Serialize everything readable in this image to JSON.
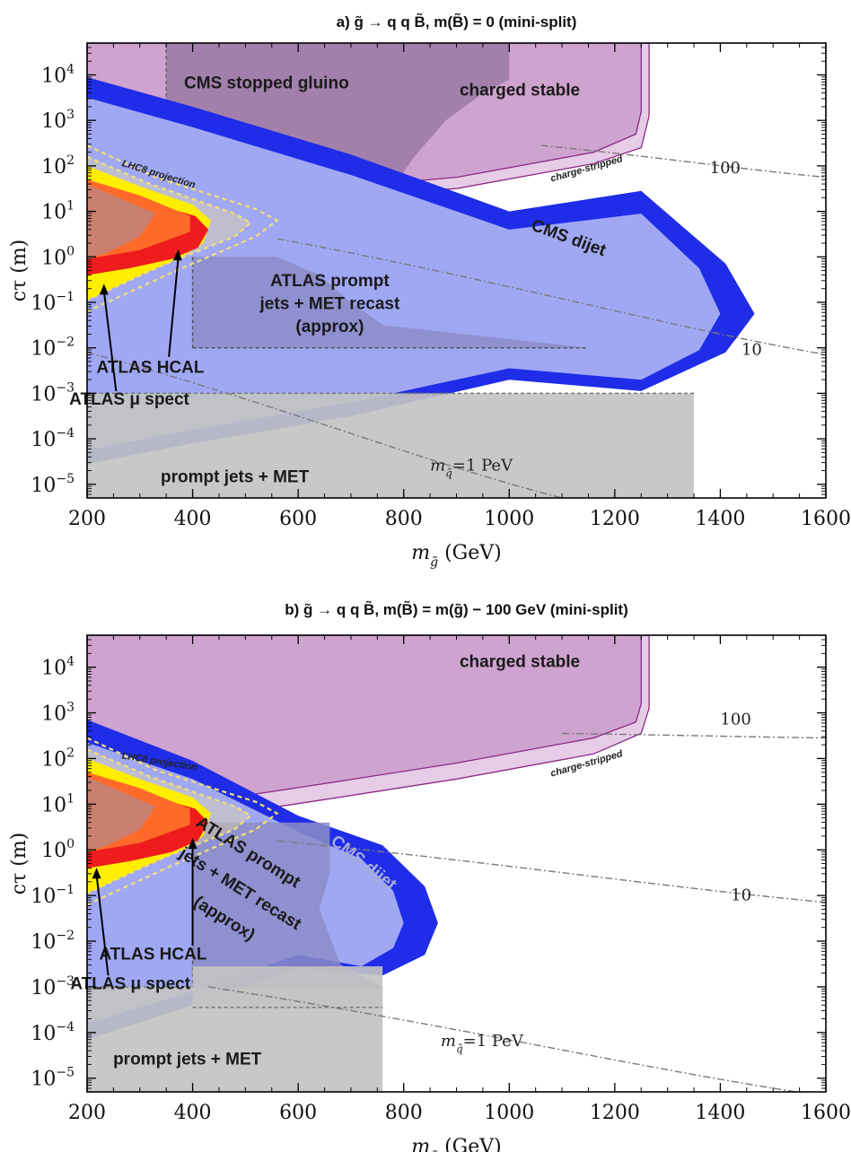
{
  "chart_data": [
    {
      "type": "area",
      "title": "a)  g̃ → q q B̃,  m(B̃) = 0  (mini-split)",
      "xlabel": "m",
      "xlabel_sub": "g̃",
      "xlabel_unit": " (GeV)",
      "ylabel": "cτ (m)",
      "xlim": [
        200,
        1600
      ],
      "ylim_log10": [
        -5.3,
        4.7
      ],
      "scale_y": "log",
      "x_ticks": [
        200,
        400,
        600,
        800,
        1000,
        1200,
        1400,
        1600
      ],
      "y_ticks_exp": [
        -5,
        -4,
        -3,
        -2,
        -1,
        0,
        1,
        2,
        3,
        4
      ],
      "tick_base": "10",
      "regions": [
        {
          "name": "CMS stopped gluino",
          "color": "#9a7aa4"
        },
        {
          "name": "charged stable",
          "color": "#cfa3cf",
          "edge": 1250
        },
        {
          "name": "charge-stripped",
          "color": "#e6cce6",
          "edge": 1265
        },
        {
          "name": "CMS dijet",
          "color": "#1f2de8",
          "outer_tip": [
            1465,
            -1.25
          ],
          "inner_tip": [
            1400,
            -1.25
          ],
          "y_range_log10": [
            -4.55,
            3.95
          ]
        },
        {
          "name": "ATLAS prompt jets + MET recast (approx)",
          "color": "#8c8cc8",
          "x_range": [
            400,
            1150
          ],
          "y_range_log10": [
            -2,
            0
          ]
        },
        {
          "name": "prompt jets + MET",
          "color": "#c3c3c3",
          "x_range": [
            200,
            1350
          ],
          "y_range_log10": [
            -5.3,
            -3
          ]
        },
        {
          "name": "ATLAS HCAL",
          "color": "#ee1c1c"
        },
        {
          "name": "ATLAS μ spect",
          "color": "#ffee00"
        },
        {
          "name": "LHC8 projection",
          "color": "#f4e070"
        }
      ],
      "contours": [
        {
          "label": "100",
          "m_squark": "100 PeV",
          "points": [
            [
              1060,
              2.45
            ],
            [
              1600,
              1.75
            ]
          ]
        },
        {
          "label": "10",
          "m_squark": "10 PeV",
          "points": [
            [
              560,
              0.4
            ],
            [
              1600,
              -2.15
            ]
          ]
        },
        {
          "label": "m",
          "label_sub": "q̃",
          "label_rest": "=1 PeV",
          "m_squark": "1 PeV",
          "points": [
            [
              200,
              -2.1
            ],
            [
              1100,
              -5.3
            ]
          ]
        }
      ],
      "labels": {
        "stopped": "CMS stopped gluino",
        "charged": "charged stable",
        "stripped": "charge-stripped",
        "dijet": "CMS dijet",
        "atlas_line1": "ATLAS prompt",
        "atlas_line2": "jets + MET recast",
        "atlas_line3": "(approx)",
        "prompt": "prompt jets + MET",
        "lhc8": "LHC8 projection",
        "hcal": "ATLAS HCAL",
        "muspect": "ATLAS μ spect"
      }
    },
    {
      "type": "area",
      "title": "b)  g̃ → q q B̃,  m(B̃) = m(g̃) − 100 GeV  (mini-split)",
      "xlabel": "m",
      "xlabel_sub": "g̃",
      "xlabel_unit": " (GeV)",
      "ylabel": "cτ (m)",
      "xlim": [
        200,
        1600
      ],
      "ylim_log10": [
        -5.3,
        4.7
      ],
      "scale_y": "log",
      "x_ticks": [
        200,
        400,
        600,
        800,
        1000,
        1200,
        1400,
        1600
      ],
      "y_ticks_exp": [
        -5,
        -4,
        -3,
        -2,
        -1,
        0,
        1,
        2,
        3,
        4
      ],
      "tick_base": "10",
      "regions": [
        {
          "name": "charged stable",
          "color": "#cfa3cf",
          "edge": 1250
        },
        {
          "name": "charge-stripped",
          "color": "#e6cce6",
          "edge": 1265
        },
        {
          "name": "CMS dijet",
          "color": "#1f2de8",
          "outer_tip": [
            865,
            -1.6
          ],
          "inner_tip": [
            800,
            -1.6
          ],
          "y_range_log10": [
            -4.15,
            2.85
          ]
        },
        {
          "name": "ATLAS prompt jets + MET recast (approx)",
          "color": "#8c8cc8",
          "x_range": [
            400,
            760
          ],
          "y_range_log10": [
            -3,
            0
          ]
        },
        {
          "name": "prompt jets + MET",
          "color": "#c3c3c3",
          "x_range": [
            200,
            760
          ],
          "y_range_log10": [
            -5.3,
            -3
          ]
        },
        {
          "name": "ATLAS HCAL",
          "color": "#ee1c1c"
        },
        {
          "name": "ATLAS μ spect",
          "color": "#ffee00"
        },
        {
          "name": "LHC8 projection",
          "color": "#f4e070"
        }
      ],
      "contours": [
        {
          "label": "100",
          "m_squark": "100 PeV",
          "points": [
            [
              1100,
              2.55
            ],
            [
              1600,
              2.45
            ]
          ]
        },
        {
          "label": "10",
          "m_squark": "10 PeV",
          "points": [
            [
              560,
              0.2
            ],
            [
              1600,
              -1.15
            ]
          ]
        },
        {
          "label": "m",
          "label_sub": "q̃",
          "label_rest": "=1 PeV",
          "m_squark": "1 PeV",
          "points": [
            [
              430,
              -3.0
            ],
            [
              1600,
              -5.4
            ]
          ]
        }
      ],
      "labels": {
        "charged": "charged stable",
        "stripped": "charge-stripped",
        "dijet": "CMS dijet",
        "atlas_line1": "ATLAS prompt",
        "atlas_line2": "jets + MET recast",
        "atlas_line3": "(approx)",
        "prompt": "prompt jets + MET",
        "lhc8": "LHC8 projection",
        "hcal": "ATLAS HCAL",
        "muspect": "ATLAS μ spect"
      }
    }
  ]
}
